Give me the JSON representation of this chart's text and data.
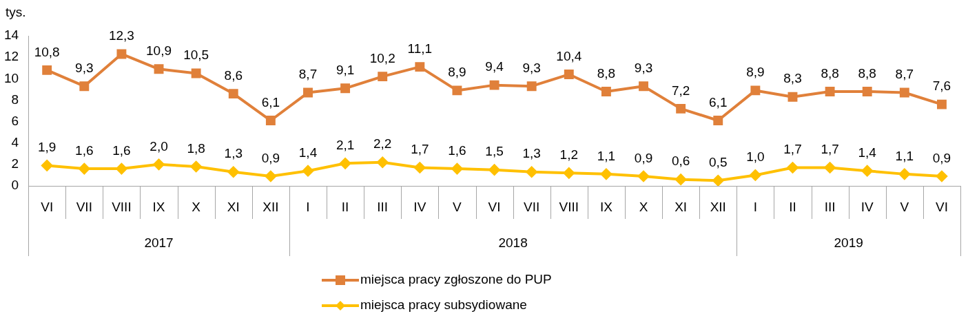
{
  "chart_data": {
    "type": "line",
    "ylabel": "tys.",
    "categories": [
      "VI",
      "VII",
      "VIII",
      "IX",
      "X",
      "XI",
      "XII",
      "I",
      "II",
      "III",
      "IV",
      "V",
      "VI",
      "VII",
      "VIII",
      "IX",
      "X",
      "XI",
      "XII",
      "I",
      "II",
      "III",
      "IV",
      "V",
      "VI"
    ],
    "annotations": [
      "2017",
      "2018",
      "2019"
    ],
    "series": [
      {
        "name": "miejsca pracy zgłoszone do PUP",
        "color": "#e0803a",
        "marker": "square",
        "values": [
          10.8,
          9.3,
          12.3,
          10.9,
          10.5,
          8.6,
          6.1,
          8.7,
          9.1,
          10.2,
          11.1,
          8.9,
          9.4,
          9.3,
          10.4,
          8.8,
          9.3,
          7.2,
          6.1,
          8.9,
          8.3,
          8.8,
          8.8,
          8.7,
          7.6
        ],
        "value_labels": [
          "10,8",
          "9,3",
          "12,3",
          "10,9",
          "10,5",
          "8,6",
          "6,1",
          "8,7",
          "9,1",
          "10,2",
          "11,1",
          "8,9",
          "9,4",
          "9,3",
          "10,4",
          "8,8",
          "9,3",
          "7,2",
          "6,1",
          "8,9",
          "8,3",
          "8,8",
          "8,8",
          "8,7",
          "7,6"
        ]
      },
      {
        "name": "miejsca pracy subsydiowane",
        "color": "#ffc000",
        "marker": "diamond",
        "values": [
          1.9,
          1.6,
          1.6,
          2.0,
          1.8,
          1.3,
          0.9,
          1.4,
          2.1,
          2.2,
          1.7,
          1.6,
          1.5,
          1.3,
          1.2,
          1.1,
          0.9,
          0.6,
          0.5,
          1.0,
          1.7,
          1.7,
          1.4,
          1.1,
          0.9
        ],
        "value_labels": [
          "1,9",
          "1,6",
          "1,6",
          "2,0",
          "1,8",
          "1,3",
          "0,9",
          "1,4",
          "2,1",
          "2,2",
          "1,7",
          "1,6",
          "1,5",
          "1,3",
          "1,2",
          "1,1",
          "0,9",
          "0,6",
          "0,5",
          "1,0",
          "1,7",
          "1,7",
          "1,4",
          "1,1",
          "0,9"
        ]
      }
    ],
    "ylim": [
      0,
      14
    ],
    "yticks": [
      0,
      2,
      4,
      6,
      8,
      10,
      12,
      14
    ],
    "grid": false,
    "legend": "bottom",
    "line_style": "solid"
  }
}
